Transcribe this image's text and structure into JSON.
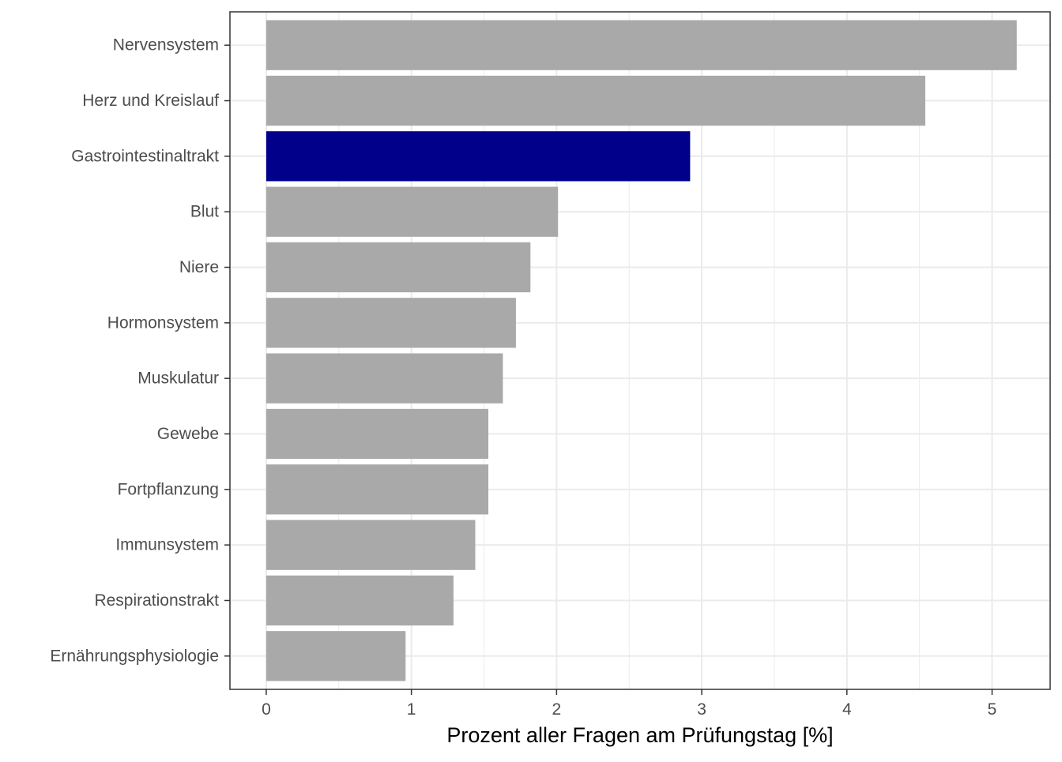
{
  "chart_data": {
    "type": "bar",
    "orientation": "horizontal",
    "categories": [
      "Nervensystem",
      "Herz und Kreislauf",
      "Gastrointestinaltrakt",
      "Blut",
      "Niere",
      "Hormonsystem",
      "Muskulatur",
      "Gewebe",
      "Fortpflanzung",
      "Immunsystem",
      "Respirationstrakt",
      "Ernährungsphysiologie"
    ],
    "values": [
      5.17,
      4.54,
      2.92,
      2.01,
      1.82,
      1.72,
      1.63,
      1.53,
      1.53,
      1.44,
      1.29,
      0.96
    ],
    "highlighted_category": "Gastrointestinaltrakt",
    "colors": {
      "bar": "#a9a9a9",
      "highlight": "#00008b",
      "grid": "#ebebeb",
      "panel_border": "#333333"
    },
    "title": "",
    "xlabel": "Prozent aller Fragen am Prüfungstag [%]",
    "ylabel": "",
    "xlim": [
      -0.25,
      5.4
    ],
    "x_ticks": [
      0,
      1,
      2,
      3,
      4,
      5
    ],
    "x_tick_labels": [
      "0",
      "1",
      "2",
      "3",
      "4",
      "5"
    ],
    "grid": true,
    "legend": "none"
  }
}
